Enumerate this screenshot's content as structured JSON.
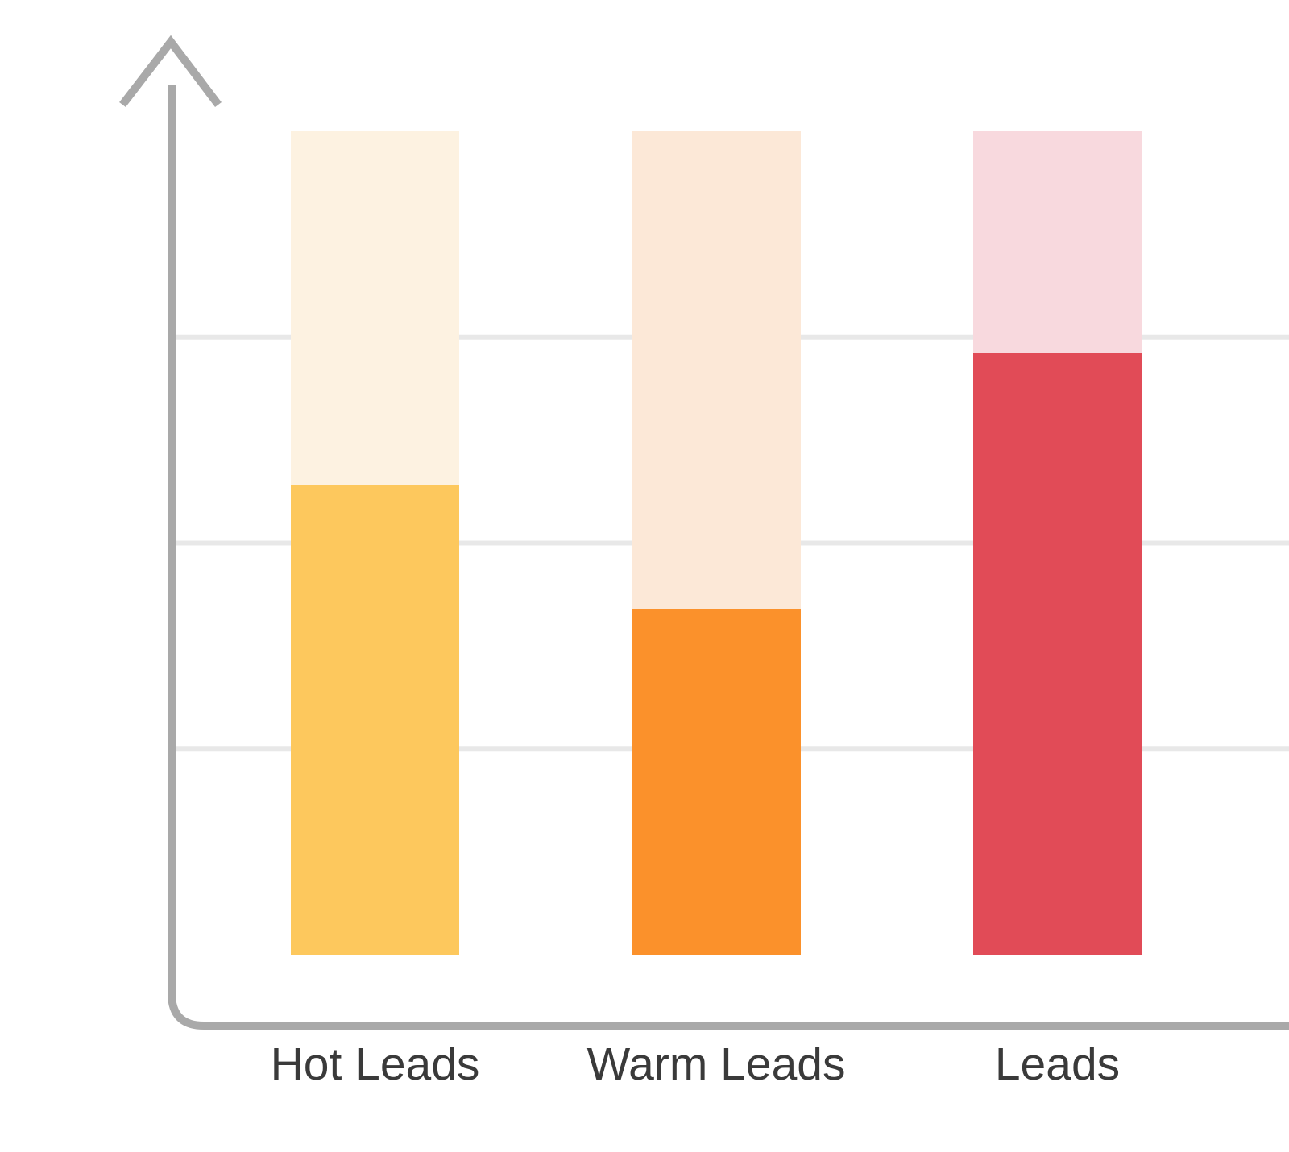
{
  "chart_data": {
    "type": "bar",
    "subtype": "progress-columns",
    "title": "",
    "orientation": "vertical",
    "categories": [
      "Hot Leads",
      "Warm Leads",
      "Leads"
    ],
    "values": [
      57,
      42,
      73
    ],
    "track_max": 100,
    "ylim": [
      0,
      100
    ],
    "gridlines_y": [
      25,
      50,
      75
    ],
    "grid": true,
    "legend": false,
    "numeric_axis_labels_visible": false,
    "y_axis_arrow": true,
    "bar_colors": [
      {
        "fill": "#FDC85D",
        "track": "#FDF2E1"
      },
      {
        "fill": "#FB912B",
        "track": "#FCE8D7"
      },
      {
        "fill": "#E14B57",
        "track": "#F8D9DE"
      }
    ],
    "axis_color": "#A9A9A9",
    "gridline_color": "#E8E8E8",
    "label_color": "#3A3A3A"
  }
}
